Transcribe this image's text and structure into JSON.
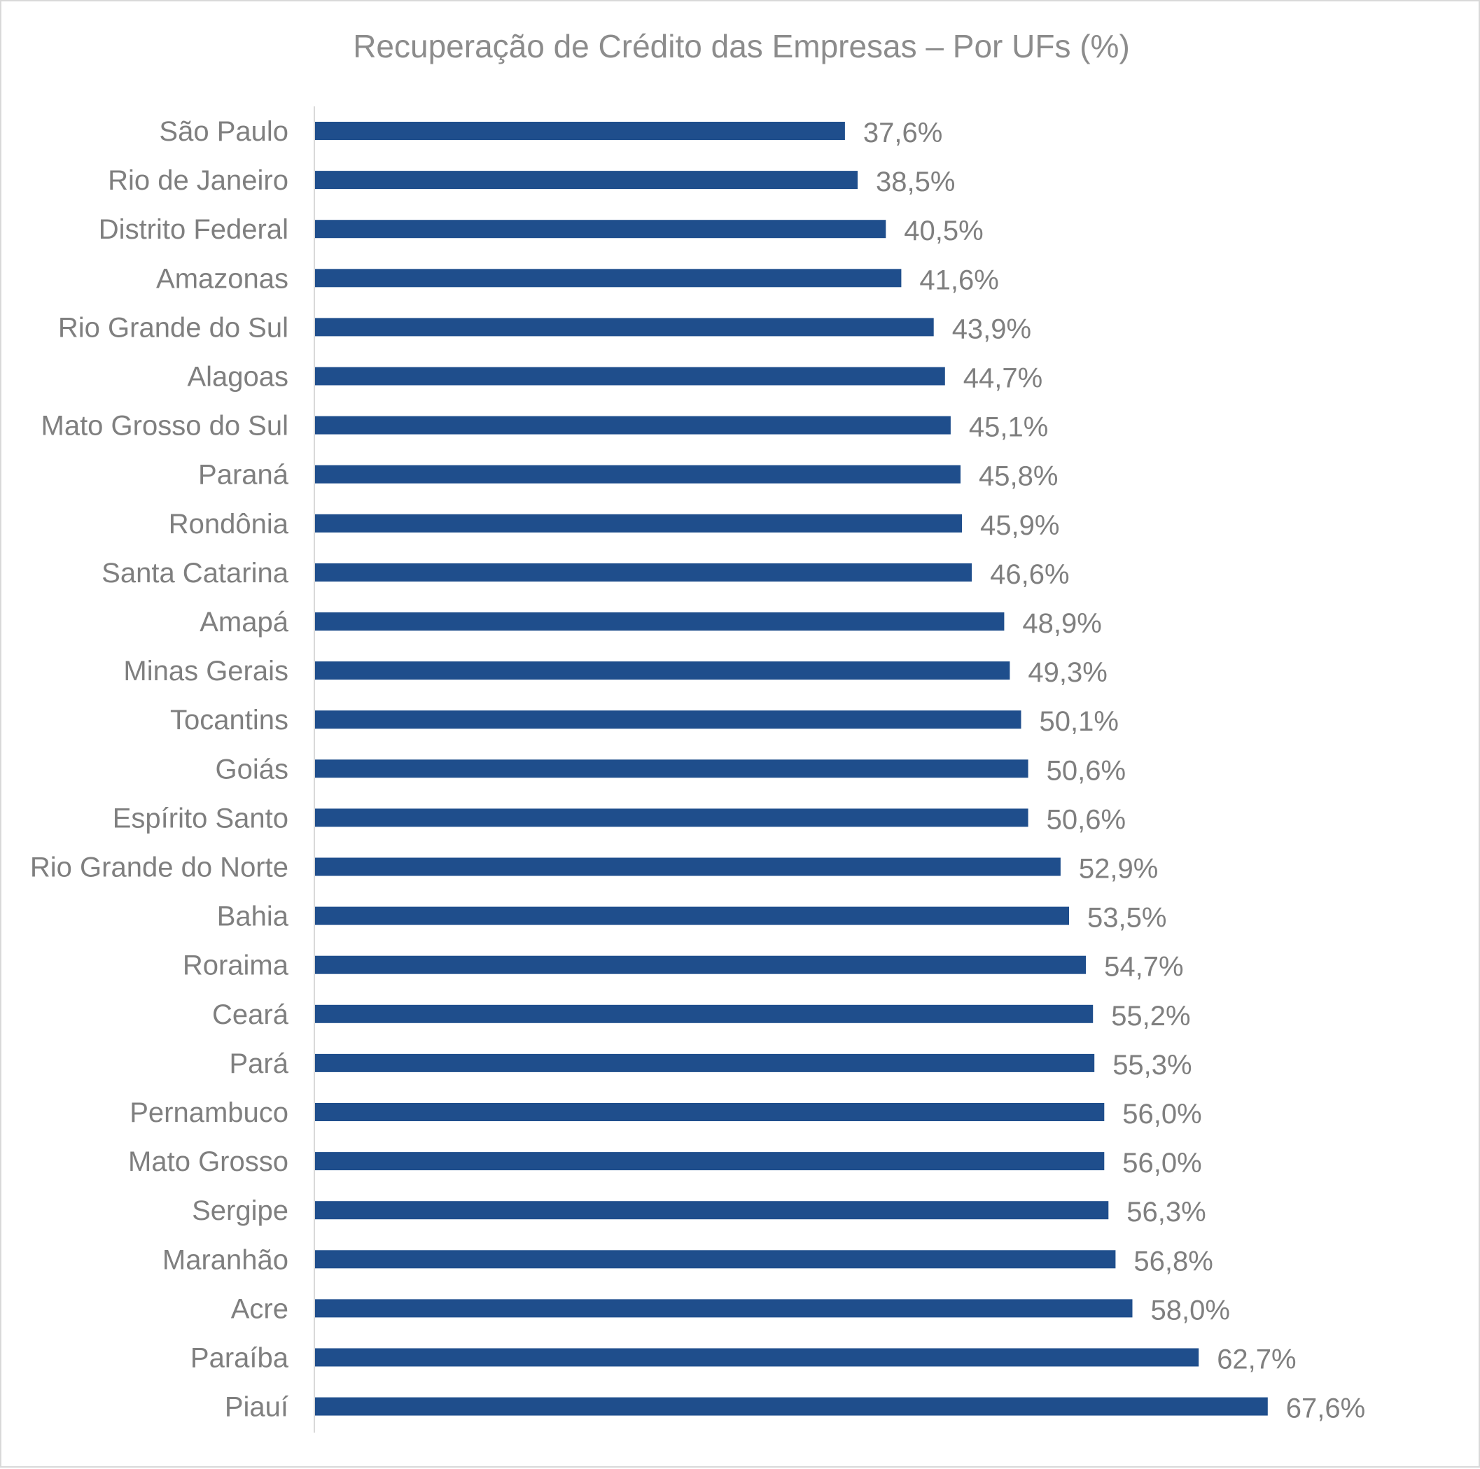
{
  "chart_data": {
    "type": "bar",
    "orientation": "horizontal",
    "title": "Recuperação de Crédito das Empresas – Por UFs (%)",
    "xlabel": "",
    "ylabel": "",
    "xlim": [
      0,
      70
    ],
    "grid": false,
    "legend": "none",
    "value_suffix": "%",
    "decimal_separator": ",",
    "categories": [
      "São Paulo",
      "Rio de Janeiro",
      "Distrito Federal",
      "Amazonas",
      "Rio Grande do Sul",
      "Alagoas",
      "Mato Grosso do Sul",
      "Paraná",
      "Rondônia",
      "Santa Catarina",
      "Amapá",
      "Minas Gerais",
      "Tocantins",
      "Goiás",
      "Espírito Santo",
      "Rio Grande do Norte",
      "Bahia",
      "Roraima",
      "Ceará",
      "Pará",
      "Pernambuco",
      "Mato Grosso",
      "Sergipe",
      "Maranhão",
      "Acre",
      "Paraíba",
      "Piauí"
    ],
    "values": [
      37.6,
      38.5,
      40.5,
      41.6,
      43.9,
      44.7,
      45.1,
      45.8,
      45.9,
      46.6,
      48.9,
      49.3,
      50.1,
      50.6,
      50.6,
      52.9,
      53.5,
      54.7,
      55.2,
      55.3,
      56.0,
      56.0,
      56.3,
      56.8,
      58.0,
      62.7,
      67.6
    ],
    "value_labels": [
      "37,6%",
      "38,5%",
      "40,5%",
      "41,6%",
      "43,9%",
      "44,7%",
      "45,1%",
      "45,8%",
      "45,9%",
      "46,6%",
      "48,9%",
      "49,3%",
      "50,1%",
      "50,6%",
      "50,6%",
      "52,9%",
      "53,5%",
      "54,7%",
      "55,2%",
      "55,3%",
      "56,0%",
      "56,0%",
      "56,3%",
      "56,8%",
      "58,0%",
      "62,7%",
      "67,6%"
    ]
  },
  "colors": {
    "bar": "#1f4e8c",
    "axis_line": "#d9d9d9",
    "text": "#7f7f7f",
    "title": "#8c8c8c"
  }
}
